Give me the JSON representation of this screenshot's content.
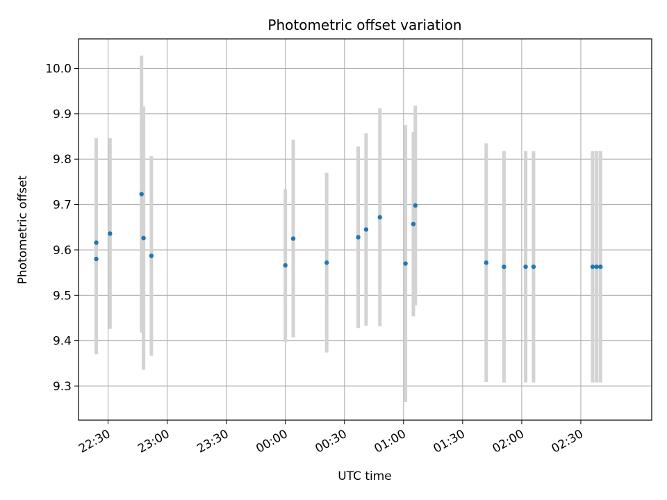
{
  "chart_data": {
    "type": "scatter",
    "title": "Photometric offset variation",
    "xlabel": "UTC time",
    "ylabel": "Photometric offset",
    "x_ticks": [
      "22:30",
      "23:00",
      "23:30",
      "00:00",
      "00:30",
      "01:00",
      "01:30",
      "02:00",
      "02:30"
    ],
    "y_ticks": [
      9.3,
      9.4,
      9.5,
      9.6,
      9.7,
      9.8,
      9.9,
      10.0
    ],
    "xlim": [
      "22:15",
      "03:06"
    ],
    "ylim": [
      9.225,
      10.065
    ],
    "grid": true,
    "colors": {
      "marker": "#1f77b4",
      "errorbar": "#d3d3d3"
    },
    "points": [
      {
        "time": "22:24",
        "y": 9.58,
        "err": 0.21
      },
      {
        "time": "22:24",
        "y": 9.616,
        "err": 0.23
      },
      {
        "time": "22:31",
        "y": 9.636,
        "err": 0.21
      },
      {
        "time": "22:47",
        "y": 9.723,
        "err": 0.305
      },
      {
        "time": "22:48",
        "y": 9.626,
        "err": 0.29
      },
      {
        "time": "22:48",
        "y": 9.626,
        "err": 0.275
      },
      {
        "time": "22:52",
        "y": 9.587,
        "err": 0.22
      },
      {
        "time": "00:00",
        "y": 9.566,
        "err": 0.168
      },
      {
        "time": "00:04",
        "y": 9.625,
        "err": 0.218
      },
      {
        "time": "00:21",
        "y": 9.572,
        "err": 0.198
      },
      {
        "time": "00:37",
        "y": 9.628,
        "err": 0.2
      },
      {
        "time": "00:41",
        "y": 9.645,
        "err": 0.212
      },
      {
        "time": "00:48",
        "y": 9.672,
        "err": 0.24
      },
      {
        "time": "01:01",
        "y": 9.57,
        "err": 0.305
      },
      {
        "time": "01:05",
        "y": 9.657,
        "err": 0.203
      },
      {
        "time": "01:06",
        "y": 9.698,
        "err": 0.22
      },
      {
        "time": "01:42",
        "y": 9.572,
        "err": 0.263
      },
      {
        "time": "01:51",
        "y": 9.563,
        "err": 0.255
      },
      {
        "time": "02:02",
        "y": 9.563,
        "err": 0.255
      },
      {
        "time": "02:06",
        "y": 9.563,
        "err": 0.255
      },
      {
        "time": "02:36",
        "y": 9.563,
        "err": 0.255
      },
      {
        "time": "02:38",
        "y": 9.563,
        "err": 0.255
      },
      {
        "time": "02:40",
        "y": 9.563,
        "err": 0.255
      }
    ]
  }
}
